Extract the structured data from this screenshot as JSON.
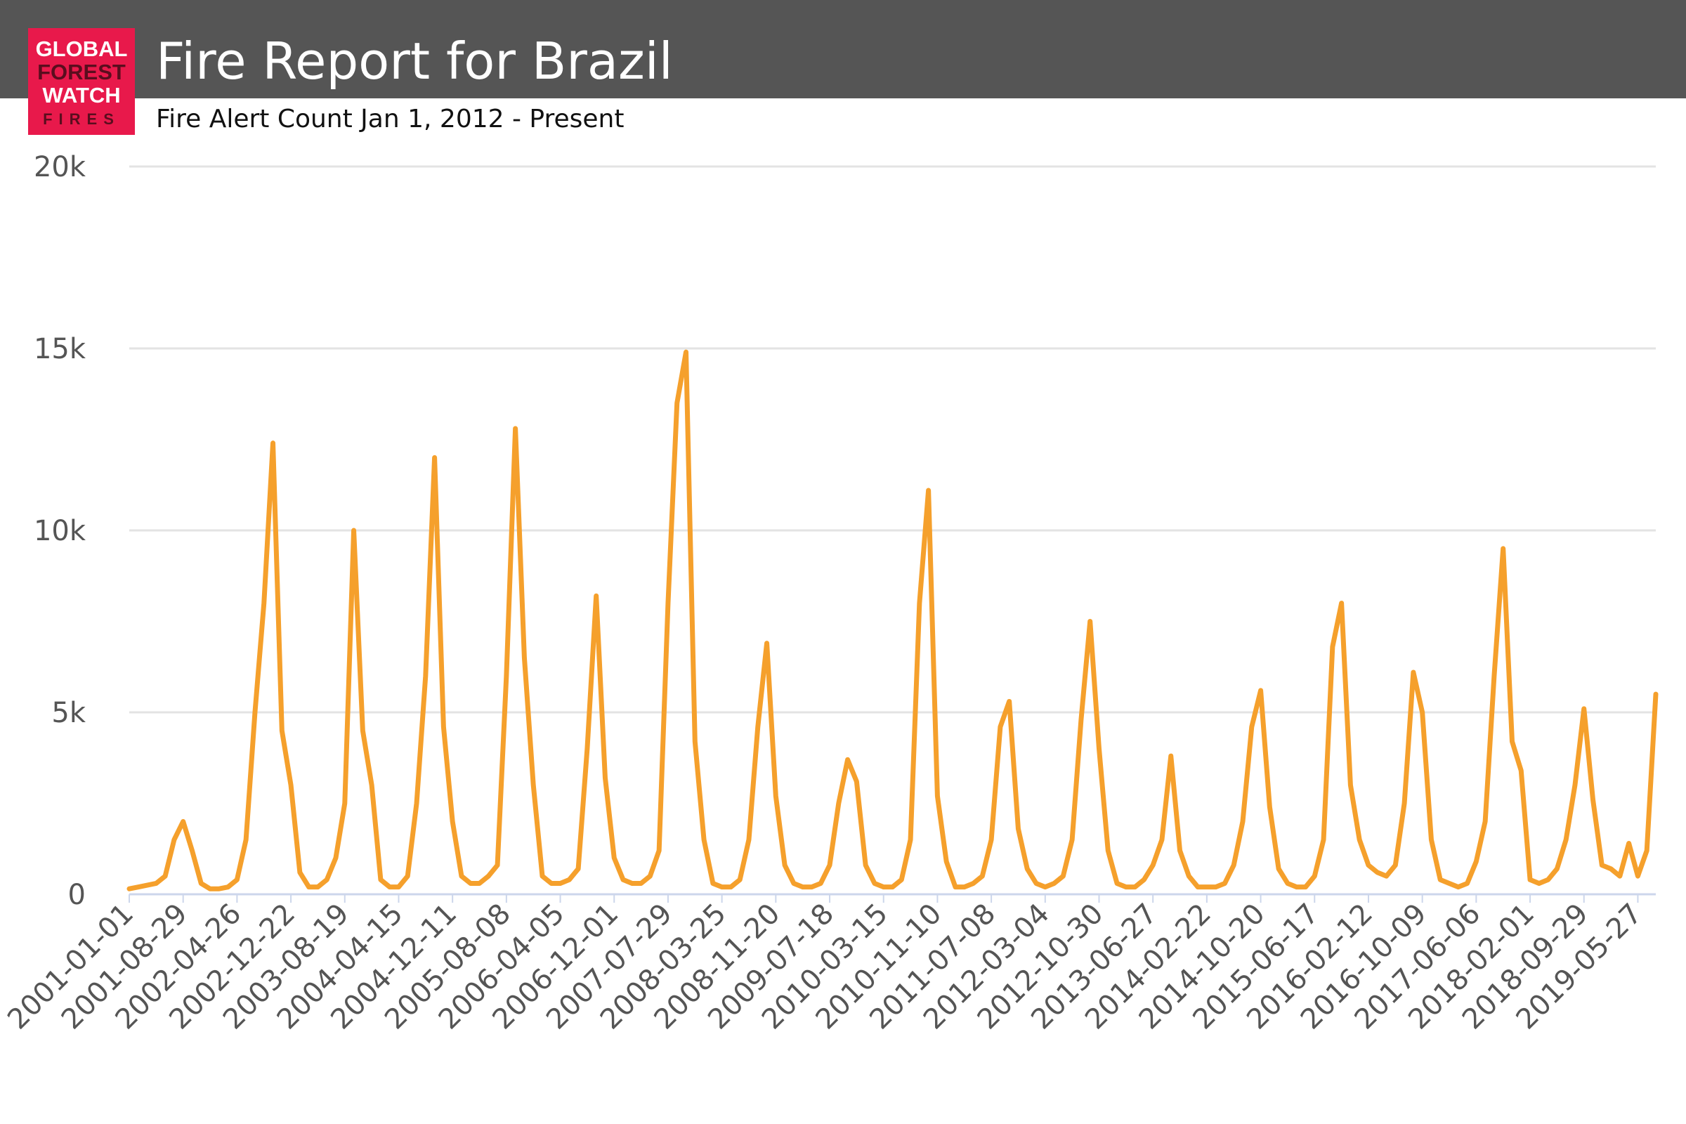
{
  "logo": [
    "GLOBAL",
    "FOREST",
    "WATCH",
    "FIRES"
  ],
  "chart_data": {
    "type": "line",
    "title": "Fire Report for Brazil",
    "subtitle": "Fire Alert Count Jan 1, 2012 - Present",
    "color": "#f5a02c",
    "grid": true,
    "ylim": [
      0,
      20000
    ],
    "yticks": [
      0,
      {
        "value": 5000,
        "label": "5k"
      },
      {
        "value": 10000,
        "label": "10k"
      },
      {
        "value": 15000,
        "label": "15k"
      },
      {
        "value": 20000,
        "label": "20k"
      }
    ],
    "categories": [
      "2001-01-01",
      null,
      null,
      null,
      null,
      null,
      "2001-08-29",
      null,
      null,
      null,
      null,
      null,
      "2002-04-26",
      null,
      null,
      null,
      null,
      null,
      "2002-12-22",
      null,
      null,
      null,
      null,
      null,
      "2003-08-19",
      null,
      null,
      null,
      null,
      null,
      "2004-04-15",
      null,
      null,
      null,
      null,
      null,
      "2004-12-11",
      null,
      null,
      null,
      null,
      null,
      "2005-08-08",
      null,
      null,
      null,
      null,
      null,
      "2006-04-05",
      null,
      null,
      null,
      null,
      null,
      "2006-12-01",
      null,
      null,
      null,
      null,
      null,
      "2007-07-29",
      null,
      null,
      null,
      null,
      null,
      "2008-03-25",
      null,
      null,
      null,
      null,
      null,
      "2008-11-20",
      null,
      null,
      null,
      null,
      null,
      "2009-07-18",
      null,
      null,
      null,
      null,
      null,
      "2010-03-15",
      null,
      null,
      null,
      null,
      null,
      "2010-11-10",
      null,
      null,
      null,
      null,
      null,
      "2011-07-08",
      null,
      null,
      null,
      null,
      null,
      "2012-03-04",
      null,
      null,
      null,
      null,
      null,
      "2012-10-30",
      null,
      null,
      null,
      null,
      null,
      "2013-06-27",
      null,
      null,
      null,
      null,
      null,
      "2014-02-22",
      null,
      null,
      null,
      null,
      null,
      "2014-10-20",
      null,
      null,
      null,
      null,
      null,
      "2015-06-17",
      null,
      null,
      null,
      null,
      null,
      "2016-02-12",
      null,
      null,
      null,
      null,
      null,
      "2016-10-09",
      null,
      null,
      null,
      null,
      null,
      "2017-06-06",
      null,
      null,
      null,
      null,
      null,
      "2018-02-01",
      null,
      null,
      null,
      null,
      null,
      "2018-09-29",
      null,
      null,
      null,
      null,
      null,
      "2019-05-27",
      null,
      null
    ],
    "values": [
      150,
      200,
      250,
      300,
      500,
      1500,
      2000,
      1200,
      300,
      150,
      150,
      200,
      400,
      1500,
      5000,
      8000,
      12400,
      4500,
      3000,
      600,
      200,
      200,
      400,
      1000,
      2500,
      10000,
      4500,
      3000,
      400,
      200,
      200,
      500,
      2500,
      6000,
      12000,
      4600,
      2000,
      500,
      300,
      300,
      500,
      800,
      6000,
      12800,
      6500,
      3000,
      500,
      300,
      300,
      400,
      700,
      4000,
      8200,
      3200,
      1000,
      400,
      300,
      300,
      500,
      1200,
      8000,
      13500,
      14900,
      4200,
      1500,
      300,
      200,
      200,
      400,
      1500,
      4600,
      6900,
      2700,
      800,
      300,
      200,
      200,
      300,
      800,
      2500,
      3700,
      3100,
      800,
      300,
      200,
      200,
      400,
      1500,
      8000,
      11100,
      2700,
      900,
      200,
      200,
      300,
      500,
      1500,
      4600,
      5300,
      1800,
      700,
      300,
      200,
      300,
      500,
      1500,
      4800,
      7500,
      4000,
      1200,
      300,
      200,
      200,
      400,
      800,
      1500,
      3800,
      1200,
      500,
      200,
      200,
      200,
      300,
      800,
      2000,
      4600,
      5600,
      2400,
      700,
      300,
      200,
      200,
      500,
      1500,
      6800,
      8000,
      3000,
      1500,
      800,
      600,
      500,
      800,
      2500,
      6100,
      5000,
      1500,
      400,
      300,
      200,
      300,
      900,
      2000,
      6000,
      9500,
      4200,
      3400,
      400,
      300,
      400,
      700,
      1500,
      3000,
      5100,
      2600,
      800,
      700,
      500,
      1400,
      500,
      1200,
      5500
    ]
  }
}
